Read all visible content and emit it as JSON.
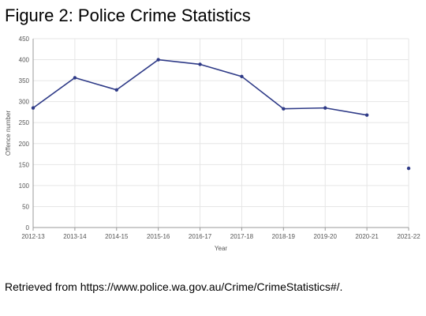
{
  "figure": {
    "title": "Figure 2:  Police Crime Statistics",
    "source": "Retrieved from https://www.police.wa.gov.au/Crime/CrimeStatistics#/."
  },
  "chart_data": {
    "type": "line",
    "xlabel": "Year",
    "ylabel": "Offence number",
    "ylim": [
      0,
      450
    ],
    "yticks": [
      0,
      50,
      100,
      150,
      200,
      250,
      300,
      350,
      400,
      450
    ],
    "categories": [
      "2012-13",
      "2013-14",
      "2014-15",
      "2015-16",
      "2016-17",
      "2017-18",
      "2018-19",
      "2019-20",
      "2020-21",
      "2021-22"
    ],
    "series": [
      {
        "color": "#2e3a87",
        "values": [
          285,
          357,
          328,
          400,
          389,
          360,
          283,
          285,
          268,
          141
        ],
        "connected_until_index": 8
      }
    ],
    "grid": true,
    "legend": "none"
  }
}
